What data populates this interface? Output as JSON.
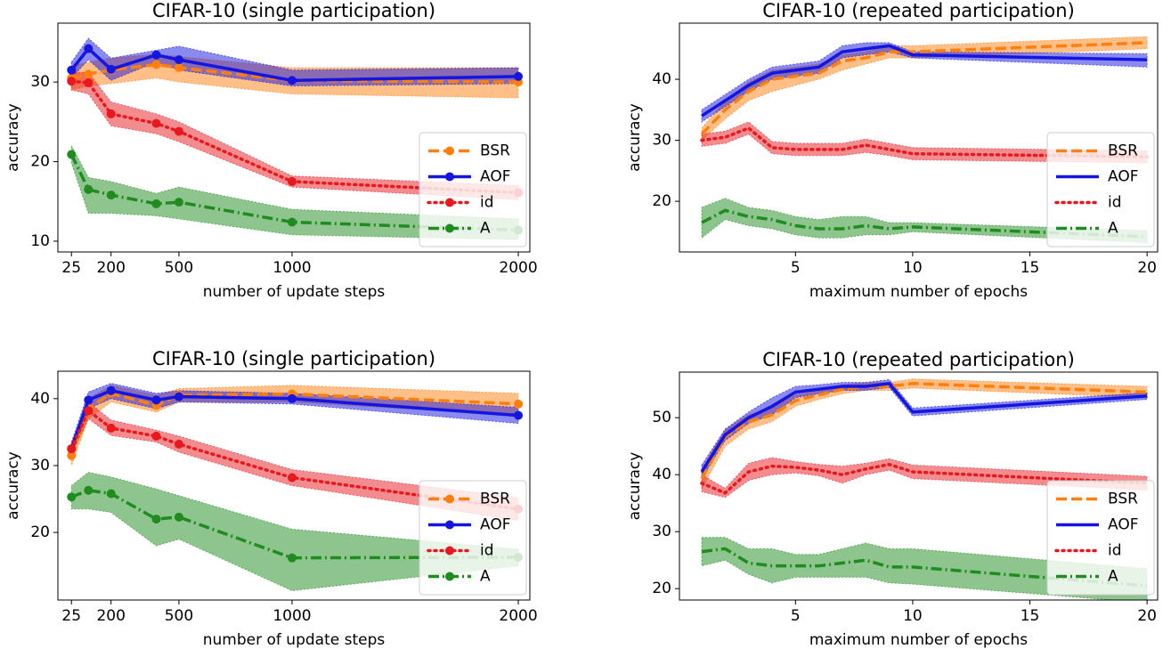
{
  "chart_data": [
    {
      "type": "line",
      "title": "CIFAR-10 (single participation)",
      "x_label": "number of update steps",
      "y_label": "accuracy",
      "x": [
        25,
        100,
        200,
        400,
        500,
        1000,
        2000
      ],
      "xlim": [
        -35,
        2051
      ],
      "xticks": [
        25,
        200,
        500,
        1000,
        2000
      ],
      "ylim": [
        8.65,
        37.4
      ],
      "yticks": [
        10,
        20,
        30
      ],
      "markers": true,
      "legend": "lower right",
      "series": [
        {
          "name": "BSR",
          "color": "#ff7f0e",
          "linestyle": "dashed",
          "values": [
            30.5,
            31,
            31.5,
            32.2,
            31.8,
            30.2,
            30.0
          ],
          "lower": [
            29,
            29.5,
            29.8,
            30.5,
            30,
            28.5,
            28
          ],
          "upper": [
            32,
            32.5,
            33,
            33.5,
            33.2,
            31.8,
            31.8
          ]
        },
        {
          "name": "AOF",
          "color": "#1515e0",
          "linestyle": "solid",
          "values": [
            31.5,
            34.2,
            31.6,
            33.4,
            32.8,
            30.2,
            30.7
          ],
          "lower": [
            30.5,
            32.8,
            30.2,
            32.5,
            31.5,
            29.5,
            29.8
          ],
          "upper": [
            32.5,
            35.5,
            33,
            34,
            34.5,
            31.5,
            31.8
          ]
        },
        {
          "name": "id",
          "color": "#e8191e",
          "linestyle": "dotted",
          "values": [
            30.1,
            29.9,
            26.0,
            24.8,
            23.8,
            17.5,
            16.1
          ],
          "lower": [
            29,
            28.5,
            24.5,
            23.5,
            22.5,
            16.8,
            15.2
          ],
          "upper": [
            31.2,
            31.2,
            27.5,
            26,
            25,
            18.2,
            17
          ]
        },
        {
          "name": "A",
          "color": "#1e8c1e",
          "linestyle": "dashdot",
          "values": [
            20.9,
            16.5,
            15.8,
            14.7,
            14.9,
            12.4,
            11.4
          ],
          "lower": [
            19.8,
            13.5,
            13.5,
            13.2,
            12.8,
            10.8,
            10.2
          ],
          "upper": [
            22,
            18,
            17.5,
            16,
            16.8,
            14,
            12.8
          ]
        }
      ]
    },
    {
      "type": "line",
      "title": "CIFAR-10 (repeated participation)",
      "x_label": "maximum number of epochs",
      "y_label": "accuracy",
      "x": [
        1,
        2,
        3,
        4,
        5,
        6,
        7,
        8,
        9,
        10,
        20
      ],
      "xlim": [
        0.05,
        20.45
      ],
      "xticks": [
        5,
        10,
        15,
        20
      ],
      "ylim": [
        11.7,
        49.2
      ],
      "yticks": [
        20,
        30,
        40
      ],
      "markers": false,
      "legend": "lower right",
      "series": [
        {
          "name": "BSR",
          "color": "#ff7f0e",
          "linestyle": "dashed",
          "values": [
            31,
            35,
            38,
            40,
            40.5,
            41,
            43,
            43.5,
            44.5,
            44.5,
            46
          ],
          "lower": [
            30,
            33.5,
            36.5,
            38,
            39,
            40,
            41.5,
            42.5,
            43.5,
            43.5,
            45
          ],
          "upper": [
            32,
            36.5,
            39.5,
            41.5,
            42,
            42.5,
            44,
            44.5,
            45.5,
            45.5,
            47
          ]
        },
        {
          "name": "AOF",
          "color": "#1515e0",
          "linestyle": "solid",
          "values": [
            34,
            36.5,
            39,
            41,
            41.5,
            42,
            44.5,
            45,
            45.5,
            44,
            43.2
          ],
          "lower": [
            33,
            35.5,
            38,
            40,
            40.5,
            41,
            43.5,
            44,
            44.5,
            43.5,
            42
          ],
          "upper": [
            35,
            37.5,
            40,
            42,
            42.5,
            43,
            45.5,
            46,
            46,
            44.5,
            44.2
          ]
        },
        {
          "name": "id",
          "color": "#e8191e",
          "linestyle": "dotted",
          "values": [
            30,
            30.5,
            32,
            28.8,
            28.5,
            28.5,
            28.5,
            29.2,
            28.5,
            27.8,
            27.3
          ],
          "lower": [
            29,
            29.5,
            31,
            27.8,
            27.5,
            27.5,
            27.5,
            28,
            27.5,
            26.8,
            26.3
          ],
          "upper": [
            31,
            31.5,
            33,
            29.8,
            29.5,
            29.5,
            29.5,
            30.2,
            29.5,
            28.8,
            28.3
          ]
        },
        {
          "name": "A",
          "color": "#1e8c1e",
          "linestyle": "dashdot",
          "values": [
            16.5,
            18.5,
            17.5,
            17,
            16,
            15.5,
            15.5,
            16,
            15.5,
            15.8,
            14.2
          ],
          "lower": [
            14,
            17,
            16,
            15.5,
            14.5,
            14,
            14,
            14.5,
            14.5,
            15,
            13.2
          ],
          "upper": [
            19,
            20.5,
            19,
            18.5,
            17.5,
            17,
            17.5,
            17.5,
            16.5,
            16.5,
            15.2
          ]
        }
      ]
    },
    {
      "type": "line",
      "title": "CIFAR-10 (single participation)",
      "x_label": "number of update steps",
      "y_label": "accuracy",
      "x": [
        25,
        100,
        200,
        400,
        500,
        1000,
        2000
      ],
      "xlim": [
        -35,
        2051
      ],
      "xticks": [
        25,
        200,
        500,
        1000,
        2000
      ],
      "ylim": [
        9.9,
        44.1
      ],
      "yticks": [
        20,
        30,
        40
      ],
      "markers": true,
      "legend": "lower right",
      "series": [
        {
          "name": "BSR",
          "color": "#ff7f0e",
          "linestyle": "dashed",
          "values": [
            31.5,
            38.5,
            40.8,
            39,
            40.5,
            40.7,
            39.2
          ],
          "lower": [
            30,
            37,
            39.5,
            38,
            39.5,
            39.5,
            37.5
          ],
          "upper": [
            33,
            40,
            42,
            40.5,
            41.5,
            42,
            40.8
          ]
        },
        {
          "name": "AOF",
          "color": "#1515e0",
          "linestyle": "solid",
          "values": [
            32.5,
            39.8,
            41.2,
            39.8,
            40.3,
            40.0,
            37.5
          ],
          "lower": [
            31.5,
            38.5,
            40,
            38.5,
            39.5,
            39.2,
            36.3
          ],
          "upper": [
            33.5,
            41,
            42.3,
            40.8,
            41.2,
            40.8,
            38.7
          ]
        },
        {
          "name": "id",
          "color": "#e8191e",
          "linestyle": "dotted",
          "values": [
            32.5,
            38.2,
            35.6,
            34.4,
            33.2,
            28.2,
            23.5
          ],
          "lower": [
            31.5,
            37,
            34.5,
            33.5,
            32,
            27,
            21.8
          ],
          "upper": [
            33.5,
            39.5,
            36.8,
            35.3,
            34.4,
            29.4,
            25.2
          ]
        },
        {
          "name": "A",
          "color": "#1e8c1e",
          "linestyle": "dashdot",
          "values": [
            25.3,
            26.3,
            25.8,
            22.0,
            22.3,
            16.2,
            16.3
          ],
          "lower": [
            23.5,
            23.5,
            23,
            18,
            19,
            11.3,
            15
          ],
          "upper": [
            27,
            29,
            28.3,
            26.5,
            25.5,
            20.5,
            17.5
          ]
        }
      ]
    },
    {
      "type": "line",
      "title": "CIFAR-10 (repeated participation)",
      "x_label": "maximum number of epochs",
      "y_label": "accuracy",
      "x": [
        1,
        2,
        3,
        4,
        5,
        6,
        7,
        8,
        9,
        10,
        20
      ],
      "xlim": [
        0.05,
        20.45
      ],
      "xticks": [
        5,
        10,
        15,
        20
      ],
      "ylim": [
        18,
        58
      ],
      "yticks": [
        20,
        30,
        40,
        50
      ],
      "markers": false,
      "legend": "lower right",
      "series": [
        {
          "name": "BSR",
          "color": "#ff7f0e",
          "linestyle": "dashed",
          "values": [
            39.3,
            46.7,
            49.3,
            50.5,
            53,
            54,
            55,
            55.5,
            55.5,
            56,
            54.5
          ],
          "lower": [
            37.5,
            45,
            48,
            49.3,
            52,
            53.2,
            54.2,
            54.8,
            54.8,
            55.2,
            53.5
          ],
          "upper": [
            41,
            48,
            50.5,
            51.7,
            54,
            54.8,
            55.8,
            56.2,
            56.2,
            56.8,
            55.5
          ]
        },
        {
          "name": "AOF",
          "color": "#1515e0",
          "linestyle": "solid",
          "values": [
            40.5,
            47,
            50,
            52,
            54.5,
            55,
            55.5,
            55.5,
            56,
            51,
            53.8
          ],
          "lower": [
            39.3,
            46,
            49,
            50.5,
            53.5,
            54.2,
            54.8,
            54.8,
            55.3,
            50.3,
            53.2
          ],
          "upper": [
            41.7,
            48,
            51,
            53.5,
            55.5,
            55.8,
            56.2,
            56.2,
            56.7,
            51.7,
            54.4
          ]
        },
        {
          "name": "id",
          "color": "#e8191e",
          "linestyle": "dotted",
          "values": [
            38.5,
            36.8,
            40.5,
            41.5,
            41.3,
            40.8,
            40,
            41,
            41.8,
            40.5,
            38.5
          ],
          "lower": [
            37,
            36,
            39,
            40,
            40.3,
            39.8,
            38.5,
            40,
            40.8,
            39.3,
            37.3
          ],
          "upper": [
            40,
            37.6,
            42,
            43,
            42.3,
            41.8,
            41.5,
            42,
            42.8,
            41.7,
            39.7
          ]
        },
        {
          "name": "A",
          "color": "#1e8c1e",
          "linestyle": "dashdot",
          "values": [
            26.5,
            27,
            24.5,
            24,
            24,
            24,
            24.5,
            25,
            23.8,
            23.8,
            20.5
          ],
          "lower": [
            24,
            25,
            22.5,
            21,
            22,
            22,
            22,
            22,
            21,
            20.8,
            17.5
          ],
          "upper": [
            29,
            29,
            27,
            27,
            26,
            26,
            27,
            28,
            27,
            27,
            23.5
          ]
        }
      ]
    }
  ]
}
